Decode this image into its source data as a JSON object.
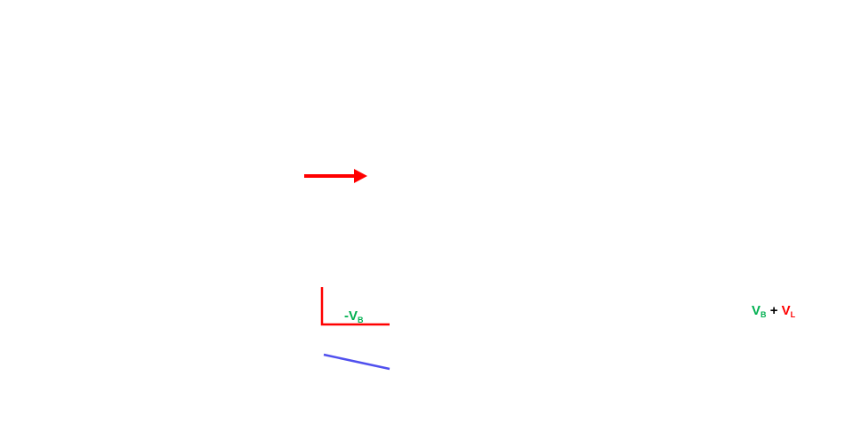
{
  "labels": {
    "neg_vb": {
      "main": "-V",
      "sub": "B"
    },
    "sum": {
      "term1_main": "V",
      "term1_sub": "B",
      "operator": "+",
      "term2_main": "V",
      "term2_sub": "L"
    }
  },
  "colors": {
    "red": "#ff0000",
    "green": "#00b050",
    "blue": "#5050ee",
    "black": "#000000"
  }
}
